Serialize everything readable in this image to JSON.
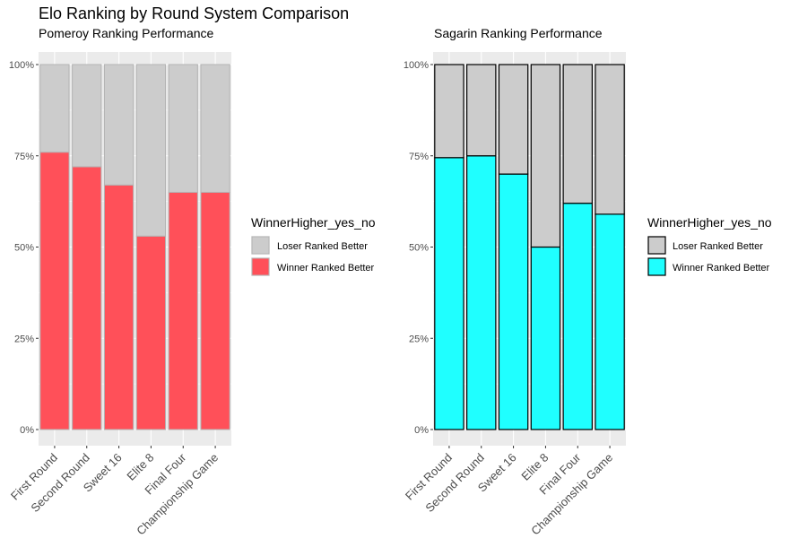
{
  "figure": {
    "title": "Elo Ranking by Round System Comparison"
  },
  "chart_data": [
    {
      "type": "bar",
      "stacked": true,
      "subtitle": "Pomeroy Ranking Performance",
      "categories": [
        "First Round",
        "Second Round",
        "Sweet 16",
        "Elite 8",
        "Final Four",
        "Championship Game"
      ],
      "series": [
        {
          "name": "Loser Ranked Better",
          "values": [
            0.24,
            0.28,
            0.33,
            0.47,
            0.35,
            0.35
          ],
          "color": "#cccccc"
        },
        {
          "name": "Winner Ranked Better",
          "values": [
            0.76,
            0.72,
            0.67,
            0.53,
            0.65,
            0.65
          ],
          "color": "#ff5059"
        }
      ],
      "bar_outline": "#b3b3b3",
      "ylim": [
        0,
        1
      ],
      "yticks": [
        "0%",
        "25%",
        "50%",
        "75%",
        "100%"
      ],
      "xlabel": "",
      "ylabel": "",
      "grid": true,
      "legend": {
        "title": "WinnerHigher_yes_no",
        "position": "right"
      }
    },
    {
      "type": "bar",
      "stacked": true,
      "subtitle": "Sagarin Ranking Performance",
      "categories": [
        "First Round",
        "Second Round",
        "Sweet 16",
        "Elite 8",
        "Final Four",
        "Championship Game"
      ],
      "series": [
        {
          "name": "Loser Ranked Better",
          "values": [
            0.255,
            0.25,
            0.3,
            0.5,
            0.38,
            0.41
          ],
          "color": "#cccccc"
        },
        {
          "name": "Winner Ranked Better",
          "values": [
            0.745,
            0.75,
            0.7,
            0.5,
            0.62,
            0.59
          ],
          "color": "#1fffff"
        }
      ],
      "bar_outline": "#000000",
      "ylim": [
        0,
        1
      ],
      "yticks": [
        "0%",
        "25%",
        "50%",
        "75%",
        "100%"
      ],
      "xlabel": "",
      "ylabel": "",
      "grid": true,
      "legend": {
        "title": "WinnerHigher_yes_no",
        "position": "right"
      }
    }
  ]
}
